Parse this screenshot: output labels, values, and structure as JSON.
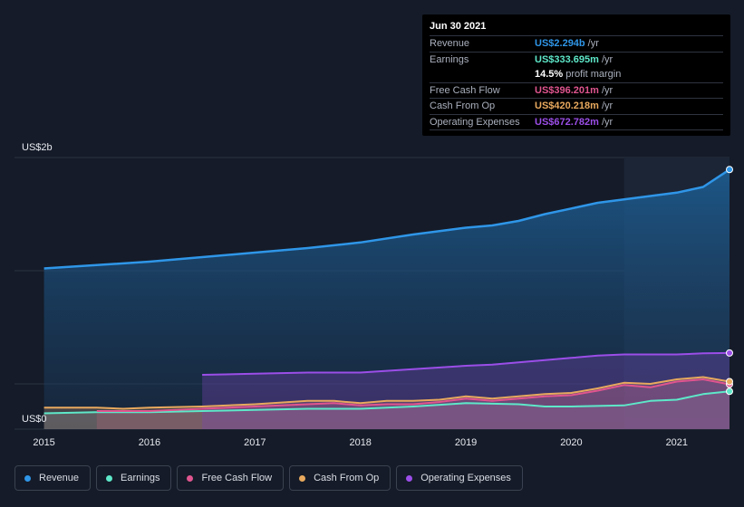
{
  "tooltip": {
    "date": "Jun 30 2021",
    "rows": [
      {
        "label": "Revenue",
        "value": "US$2.294b",
        "unit": "/yr",
        "color": "#2f96e8"
      },
      {
        "label": "Earnings",
        "value": "US$333.695m",
        "unit": "/yr",
        "color": "#5ee8c9"
      },
      {
        "label": "Free Cash Flow",
        "value": "US$396.201m",
        "unit": "/yr",
        "color": "#e0558f"
      },
      {
        "label": "Cash From Op",
        "value": "US$420.218m",
        "unit": "/yr",
        "color": "#e8a95e"
      },
      {
        "label": "Operating Expenses",
        "value": "US$672.782m",
        "unit": "/yr",
        "color": "#9b4ee8"
      }
    ],
    "profit_margin_pct": "14.5%",
    "profit_margin_label": "profit margin"
  },
  "chart_data": {
    "type": "area",
    "y_top_label": "US$2b",
    "y_bottom_label": "US$0",
    "ylim": [
      0,
      2.4
    ],
    "x_ticks": [
      "2015",
      "2016",
      "2017",
      "2018",
      "2019",
      "2020",
      "2021"
    ],
    "xlim": [
      2014.72,
      2021.5
    ],
    "highlight_from": 2020.5,
    "series": [
      {
        "name": "Revenue",
        "color": "#2f96e8",
        "x": [
          2015.0,
          2015.5,
          2016.0,
          2016.5,
          2017.0,
          2017.5,
          2018.0,
          2018.5,
          2019.0,
          2019.25,
          2019.5,
          2019.75,
          2020.0,
          2020.25,
          2020.5,
          2020.75,
          2021.0,
          2021.25,
          2021.5
        ],
        "y": [
          1.42,
          1.45,
          1.48,
          1.52,
          1.56,
          1.6,
          1.65,
          1.72,
          1.78,
          1.8,
          1.84,
          1.9,
          1.95,
          2.0,
          2.03,
          2.06,
          2.09,
          2.14,
          2.294
        ]
      },
      {
        "name": "Earnings",
        "color": "#5ee8c9",
        "x": [
          2015.0,
          2015.5,
          2016.0,
          2016.5,
          2017.0,
          2017.5,
          2018.0,
          2018.5,
          2019.0,
          2019.5,
          2019.75,
          2020.0,
          2020.5,
          2020.75,
          2021.0,
          2021.25,
          2021.5
        ],
        "y": [
          0.14,
          0.15,
          0.15,
          0.16,
          0.17,
          0.18,
          0.18,
          0.2,
          0.23,
          0.22,
          0.2,
          0.2,
          0.21,
          0.25,
          0.26,
          0.31,
          0.334
        ]
      },
      {
        "name": "Free Cash Flow",
        "color": "#e0558f",
        "x": [
          2015.5,
          2016.0,
          2016.5,
          2017.0,
          2017.5,
          2017.75,
          2018.0,
          2018.25,
          2018.5,
          2018.75,
          2019.0,
          2019.25,
          2019.5,
          2019.75,
          2020.0,
          2020.25,
          2020.5,
          2020.75,
          2021.0,
          2021.25,
          2021.5
        ],
        "y": [
          0.16,
          0.16,
          0.18,
          0.2,
          0.22,
          0.23,
          0.21,
          0.22,
          0.22,
          0.24,
          0.27,
          0.25,
          0.27,
          0.29,
          0.3,
          0.34,
          0.39,
          0.37,
          0.42,
          0.44,
          0.396
        ]
      },
      {
        "name": "Cash From Op",
        "color": "#e8a95e",
        "x": [
          2015.0,
          2015.5,
          2015.75,
          2016.0,
          2016.5,
          2017.0,
          2017.5,
          2017.75,
          2018.0,
          2018.25,
          2018.5,
          2018.75,
          2019.0,
          2019.25,
          2019.5,
          2019.75,
          2020.0,
          2020.25,
          2020.5,
          2020.75,
          2021.0,
          2021.25,
          2021.5
        ],
        "y": [
          0.19,
          0.19,
          0.18,
          0.19,
          0.2,
          0.22,
          0.25,
          0.25,
          0.23,
          0.25,
          0.25,
          0.26,
          0.29,
          0.27,
          0.29,
          0.31,
          0.32,
          0.36,
          0.41,
          0.4,
          0.44,
          0.46,
          0.42
        ]
      },
      {
        "name": "Operating Expenses",
        "color": "#9b4ee8",
        "x": [
          2016.5,
          2017.0,
          2017.5,
          2018.0,
          2018.5,
          2019.0,
          2019.25,
          2019.5,
          2019.75,
          2020.0,
          2020.25,
          2020.5,
          2020.75,
          2021.0,
          2021.25,
          2021.5
        ],
        "y": [
          0.48,
          0.49,
          0.5,
          0.5,
          0.53,
          0.56,
          0.57,
          0.59,
          0.61,
          0.63,
          0.65,
          0.66,
          0.66,
          0.66,
          0.67,
          0.673
        ]
      }
    ]
  },
  "legend": [
    {
      "label": "Revenue",
      "color": "#2f96e8"
    },
    {
      "label": "Earnings",
      "color": "#5ee8c9"
    },
    {
      "label": "Free Cash Flow",
      "color": "#e0558f"
    },
    {
      "label": "Cash From Op",
      "color": "#e8a95e"
    },
    {
      "label": "Operating Expenses",
      "color": "#9b4ee8"
    }
  ]
}
